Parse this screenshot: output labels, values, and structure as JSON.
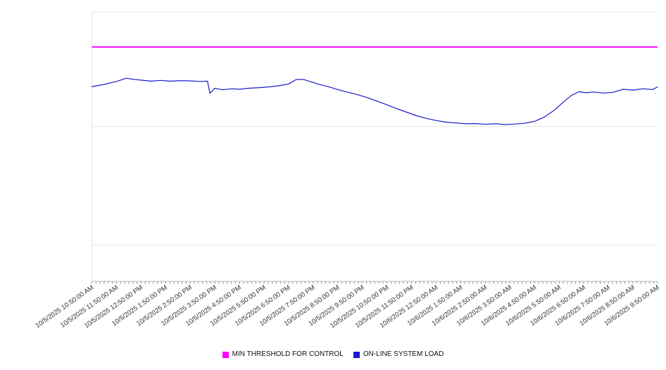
{
  "chart_data": {
    "type": "line",
    "title": "",
    "xlabel": "",
    "ylabel": "",
    "ylim": [
      0,
      100
    ],
    "grid": "horizontal",
    "y_gridlines": [
      0,
      13.5,
      57.5,
      87,
      100
    ],
    "y_axis_labels_visible": false,
    "legend_position": "bottom-center",
    "x_axis": {
      "major_tick_interval_minutes": 60,
      "minor_tick_interval_minutes": 10,
      "label_rotation_degrees": -35
    },
    "x_tick_labels": [
      "10/5/2025 10:50:00 AM",
      "10/5/2025 11:50:00 AM",
      "10/5/2025 12:50:00 PM",
      "10/5/2025 1:50:00 PM",
      "10/5/2025 2:50:00 PM",
      "10/5/2025 3:50:00 PM",
      "10/5/2025 4:50:00 PM",
      "10/5/2025 5:50:00 PM",
      "10/5/2025 6:50:00 PM",
      "10/5/2025 7:50:00 PM",
      "10/5/2025 8:50:00 PM",
      "10/5/2025 9:50:00 PM",
      "10/5/2025 10:50:00 PM",
      "10/5/2025 11:50:00 PM",
      "10/6/2025 12:50:00 AM",
      "10/6/2025 1:50:00 AM",
      "10/6/2025 2:50:00 AM",
      "10/6/2025 3:50:00 AM",
      "10/6/2025 4:50:00 AM",
      "10/6/2025 5:50:00 AM",
      "10/6/2025 6:50:00 AM",
      "10/6/2025 7:50:00 AM",
      "10/6/2025 8:50:00 AM",
      "10/6/2025 9:50:00 AM"
    ],
    "series": [
      {
        "name": "MIN THRESHOLD FOR CONTROL",
        "type": "constant",
        "color": "#ff00ff",
        "value": 87
      },
      {
        "name": "ON-LINE SYSTEM LOAD",
        "type": "line",
        "color": "#1a1acc",
        "points": [
          [
            0,
            72.3
          ],
          [
            0.5,
            73.1
          ],
          [
            1,
            74.2
          ],
          [
            1.4,
            75.4
          ],
          [
            1.7,
            75.0
          ],
          [
            2,
            74.7
          ],
          [
            2.4,
            74.3
          ],
          [
            2.8,
            74.6
          ],
          [
            3.2,
            74.3
          ],
          [
            3.6,
            74.5
          ],
          [
            4,
            74.4
          ],
          [
            4.4,
            74.2
          ],
          [
            4.7,
            74.3
          ],
          [
            4.8,
            69.8
          ],
          [
            5,
            71.7
          ],
          [
            5.3,
            71.1
          ],
          [
            5.7,
            71.5
          ],
          [
            6,
            71.3
          ],
          [
            6.4,
            71.7
          ],
          [
            6.8,
            71.9
          ],
          [
            7.2,
            72.2
          ],
          [
            7.6,
            72.6
          ],
          [
            8,
            73.3
          ],
          [
            8.3,
            74.9
          ],
          [
            8.6,
            75.0
          ],
          [
            8.9,
            74.1
          ],
          [
            9.2,
            73.2
          ],
          [
            9.6,
            72.3
          ],
          [
            10,
            71.2
          ],
          [
            10.4,
            70.2
          ],
          [
            10.8,
            69.3
          ],
          [
            11.2,
            68.2
          ],
          [
            11.6,
            66.9
          ],
          [
            12,
            65.5
          ],
          [
            12.4,
            64.1
          ],
          [
            12.8,
            62.8
          ],
          [
            13.2,
            61.5
          ],
          [
            13.6,
            60.5
          ],
          [
            14,
            59.7
          ],
          [
            14.4,
            59.1
          ],
          [
            14.8,
            58.8
          ],
          [
            15.2,
            58.5
          ],
          [
            15.6,
            58.6
          ],
          [
            16,
            58.3
          ],
          [
            16.4,
            58.5
          ],
          [
            16.8,
            58.2
          ],
          [
            17.2,
            58.4
          ],
          [
            17.6,
            58.7
          ],
          [
            18,
            59.4
          ],
          [
            18.4,
            61.0
          ],
          [
            18.8,
            63.5
          ],
          [
            19.2,
            66.8
          ],
          [
            19.5,
            69.0
          ],
          [
            19.8,
            70.4
          ],
          [
            20.1,
            70.0
          ],
          [
            20.4,
            70.3
          ],
          [
            20.8,
            69.9
          ],
          [
            21.2,
            70.2
          ],
          [
            21.6,
            71.3
          ],
          [
            22,
            71.0
          ],
          [
            22.4,
            71.5
          ],
          [
            22.8,
            71.2
          ],
          [
            23,
            72.2
          ]
        ]
      }
    ]
  },
  "legend": {
    "items": [
      {
        "label": "MIN THRESHOLD FOR CONTROL",
        "color": "#ff00ff"
      },
      {
        "label": "ON-LINE SYSTEM LOAD",
        "color": "#1a1acc"
      }
    ]
  },
  "colors": {
    "gridline": "#e6e6e6",
    "axis": "#b8b8b8",
    "tick": "#999999",
    "tick_label": "#333333"
  }
}
